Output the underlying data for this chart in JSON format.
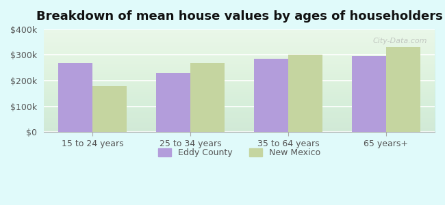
{
  "categories": [
    "15 to 24 years",
    "25 to 34 years",
    "35 to 64 years",
    "65 years+"
  ],
  "eddy_county": [
    270000,
    230000,
    285000,
    295000
  ],
  "new_mexico": [
    180000,
    270000,
    300000,
    330000
  ],
  "eddy_color": "#b39ddb",
  "nm_color": "#c5d5a0",
  "title": "Breakdown of mean house values by ages of householders",
  "title_fontsize": 13,
  "legend_labels": [
    "Eddy County",
    "New Mexico"
  ],
  "ylim": [
    0,
    400000
  ],
  "yticks": [
    0,
    100000,
    200000,
    300000,
    400000
  ],
  "ytick_labels": [
    "$0",
    "$100k",
    "$200k",
    "$300k",
    "$400k"
  ],
  "background_color": "#e0fafa",
  "plot_bg_start": "#f5fdf0",
  "plot_bg_end": "#ffffff",
  "bar_width": 0.35,
  "watermark": "City-Data.com"
}
